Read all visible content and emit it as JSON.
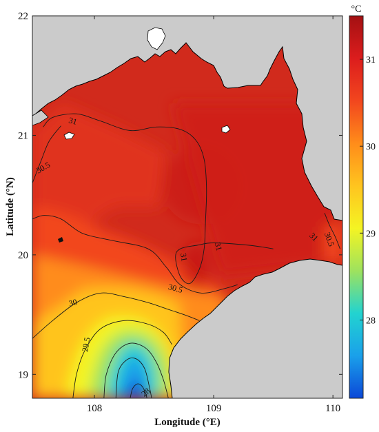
{
  "chart_data": {
    "type": "heatmap",
    "xlabel": "Longitude (°E)",
    "ylabel": "Latitude (°N)",
    "xlim": [
      107.48,
      110.08
    ],
    "ylim": [
      18.8,
      22.0
    ],
    "x_ticks": [
      {
        "value": 108,
        "label": "108"
      },
      {
        "value": 109,
        "label": "109"
      },
      {
        "value": 110,
        "label": "110"
      }
    ],
    "y_ticks": [
      {
        "value": 19,
        "label": "19"
      },
      {
        "value": 20,
        "label": "20"
      },
      {
        "value": 21,
        "label": "21"
      },
      {
        "value": 22,
        "label": "22"
      }
    ],
    "colorbar": {
      "unit": "°C",
      "range": [
        27.1,
        31.5
      ],
      "ticks": [
        {
          "value": 28,
          "label": "28"
        },
        {
          "value": 29,
          "label": "29"
        },
        {
          "value": 30,
          "label": "30"
        },
        {
          "value": 31,
          "label": "31"
        }
      ],
      "colormap": [
        "#0b48d8",
        "#1aa0ea",
        "#22d3d0",
        "#9ee25e",
        "#f4f423",
        "#ffc41f",
        "#ff8c1a",
        "#f2461e",
        "#dc1d1d",
        "#a31012"
      ]
    },
    "contours": [
      {
        "level": 31,
        "label": "31",
        "points": [
          [
            107.57,
            21.07
          ],
          [
            107.65,
            21.15
          ],
          [
            107.85,
            21.18
          ],
          [
            108.05,
            21.12
          ],
          [
            108.3,
            21.04
          ],
          [
            108.52,
            21.07
          ],
          [
            108.72,
            21.05
          ],
          [
            108.85,
            20.96
          ],
          [
            108.92,
            20.8
          ],
          [
            108.94,
            20.55
          ],
          [
            108.93,
            20.25
          ],
          [
            108.92,
            20.05
          ],
          [
            108.88,
            19.88
          ],
          [
            108.8,
            19.76
          ],
          [
            108.72,
            19.82
          ],
          [
            108.68,
            19.98
          ],
          [
            108.72,
            20.05
          ],
          [
            108.86,
            20.08
          ],
          [
            109.0,
            20.1
          ],
          [
            109.3,
            20.08
          ],
          [
            109.5,
            20.05
          ]
        ]
      },
      {
        "level": 30.5,
        "label": "30.5",
        "points": [
          [
            107.48,
            20.6
          ],
          [
            107.55,
            20.78
          ],
          [
            107.62,
            20.95
          ],
          [
            107.72,
            21.08
          ]
        ]
      },
      {
        "level": 30.5,
        "label": "30.5",
        "points": [
          [
            107.48,
            20.3
          ],
          [
            107.58,
            20.33
          ],
          [
            107.72,
            20.3
          ],
          [
            107.9,
            20.18
          ],
          [
            108.15,
            20.12
          ],
          [
            108.45,
            20.05
          ],
          [
            108.6,
            19.9
          ],
          [
            108.72,
            19.75
          ],
          [
            108.9,
            19.68
          ],
          [
            109.1,
            19.72
          ],
          [
            109.2,
            19.75
          ]
        ]
      },
      {
        "level": 30.5,
        "label": "30.5",
        "points": [
          [
            109.93,
            20.35
          ],
          [
            109.97,
            20.25
          ],
          [
            110.02,
            20.15
          ],
          [
            110.06,
            20.05
          ]
        ]
      },
      {
        "level": 30,
        "label": "30",
        "points": [
          [
            107.48,
            19.3
          ],
          [
            107.65,
            19.45
          ],
          [
            107.85,
            19.6
          ],
          [
            108.05,
            19.68
          ],
          [
            108.25,
            19.65
          ],
          [
            108.45,
            19.6
          ],
          [
            108.6,
            19.55
          ],
          [
            108.75,
            19.5
          ],
          [
            108.88,
            19.45
          ]
        ]
      },
      {
        "level": 29.5,
        "label": "29.5",
        "points": [
          [
            107.82,
            18.8
          ],
          [
            107.85,
            19.0
          ],
          [
            107.92,
            19.2
          ],
          [
            108.05,
            19.38
          ],
          [
            108.25,
            19.45
          ],
          [
            108.45,
            19.42
          ],
          [
            108.58,
            19.35
          ],
          [
            108.65,
            19.25
          ]
        ]
      },
      {
        "level": 29,
        "label": "",
        "points": [
          [
            108.08,
            18.8
          ],
          [
            108.1,
            19.0
          ],
          [
            108.18,
            19.18
          ],
          [
            108.3,
            19.26
          ],
          [
            108.43,
            19.22
          ],
          [
            108.52,
            19.1
          ],
          [
            108.58,
            18.95
          ],
          [
            108.62,
            18.8
          ]
        ]
      },
      {
        "level": 28.5,
        "label": "",
        "points": [
          [
            108.18,
            18.8
          ],
          [
            108.2,
            19.02
          ],
          [
            108.27,
            19.12
          ],
          [
            108.35,
            19.13
          ],
          [
            108.42,
            19.05
          ],
          [
            108.46,
            18.9
          ],
          [
            108.48,
            18.8
          ]
        ]
      },
      {
        "level": 28,
        "label": "28",
        "points": [
          [
            108.3,
            18.8
          ],
          [
            108.32,
            18.88
          ],
          [
            108.36,
            18.92
          ],
          [
            108.4,
            18.9
          ],
          [
            108.43,
            18.84
          ],
          [
            108.44,
            18.8
          ]
        ]
      }
    ],
    "annotations": [
      {
        "text": "31",
        "x": 107.82,
        "y": 21.12,
        "rotation": 15
      },
      {
        "text": "30.5",
        "x": 107.57,
        "y": 20.73,
        "rotation": -30
      },
      {
        "text": "31",
        "x": 108.75,
        "y": 19.98,
        "rotation": 80
      },
      {
        "text": "31",
        "x": 109.04,
        "y": 20.07,
        "rotation": 75
      },
      {
        "text": "31",
        "x": 109.84,
        "y": 20.15,
        "rotation": 45
      },
      {
        "text": "30.5",
        "x": 109.97,
        "y": 20.13,
        "rotation": 70
      },
      {
        "text": "30.5",
        "x": 108.68,
        "y": 19.72,
        "rotation": 15
      },
      {
        "text": "30",
        "x": 107.82,
        "y": 19.6,
        "rotation": -15
      },
      {
        "text": "29.5",
        "x": 107.93,
        "y": 19.25,
        "rotation": -80
      },
      {
        "text": "28",
        "x": 108.43,
        "y": 18.85,
        "rotation": -40
      }
    ],
    "grid": false
  }
}
